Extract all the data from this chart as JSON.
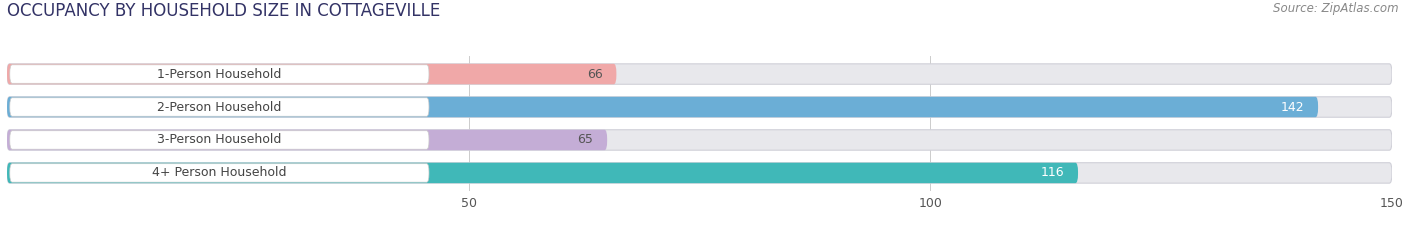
{
  "title": "OCCUPANCY BY HOUSEHOLD SIZE IN COTTAGEVILLE",
  "source": "Source: ZipAtlas.com",
  "categories": [
    "1-Person Household",
    "2-Person Household",
    "3-Person Household",
    "4+ Person Household"
  ],
  "values": [
    66,
    142,
    65,
    116
  ],
  "bar_colors": [
    "#f0a8a8",
    "#6baed6",
    "#c4add6",
    "#40b8b8"
  ],
  "value_text_colors": [
    "#555555",
    "#ffffff",
    "#555555",
    "#ffffff"
  ],
  "xlim_max": 150,
  "xticks": [
    50,
    100,
    150
  ],
  "bg_color": "#ffffff",
  "bar_bg_color": "#e8e8ec",
  "title_fontsize": 12,
  "source_fontsize": 8.5,
  "label_fontsize": 9,
  "value_fontsize": 9,
  "figsize": [
    14.06,
    2.33
  ],
  "dpi": 100
}
